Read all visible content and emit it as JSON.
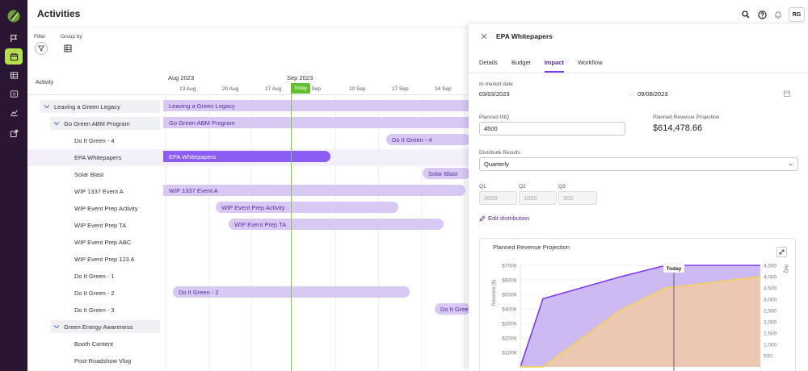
{
  "app": {
    "title": "Activities",
    "avatar": "RG"
  },
  "toolbar": {
    "filter_label": "Filter",
    "group_by_label": "Group by"
  },
  "timeline": {
    "column_header": "Activity",
    "months": [
      "Aug 2023",
      "Sep 2023"
    ],
    "weeks": [
      "13 Aug",
      "20 Aug",
      "27 Aug",
      "3 Sep",
      "10 Sep",
      "17 Sep",
      "24 Sep"
    ],
    "today_label": "Today"
  },
  "rows": [
    {
      "label": "Leaving a Green Legacy",
      "level": 0,
      "group": true,
      "bar": "Leaving a Green Legacy"
    },
    {
      "label": "Go Green ABM Program",
      "level": 1,
      "group": true,
      "bar": "Go Green ABM Program"
    },
    {
      "label": "Do It Green - 4",
      "level": 2,
      "bar": "Do It Green - 4"
    },
    {
      "label": "EPA Whitepapers",
      "level": 2,
      "selected": true,
      "bar": "EPA Whitepapers"
    },
    {
      "label": "Solar Blast",
      "level": 2,
      "bar": "Solar Blast"
    },
    {
      "label": "WIP 1337 Event A",
      "level": 2,
      "bar": "WIP 1337 Event A"
    },
    {
      "label": "WIP Event Prep Activity",
      "level": 2,
      "bar": "WIP Event Prep Activity"
    },
    {
      "label": "WIP Event Prep TA",
      "level": 2,
      "bar": "WIP Event Prep TA"
    },
    {
      "label": "WIP Event Prep ABC",
      "level": 2,
      "bar": ""
    },
    {
      "label": "WIP Event Prep 123 A",
      "level": 2,
      "bar": ""
    },
    {
      "label": "Do It Green - 1",
      "level": 2,
      "bar": ""
    },
    {
      "label": "Do It Green - 2",
      "level": 2,
      "bar": "Do It Green - 2"
    },
    {
      "label": "Do It Green - 3",
      "level": 2,
      "bar": "Do It Green"
    },
    {
      "label": "Green Energy Awareness",
      "level": 1,
      "group": true,
      "bar": ""
    },
    {
      "label": "Booth Content",
      "level": 2,
      "bar": ""
    },
    {
      "label": "Post-Roadshow Vlog",
      "level": 2,
      "bar": ""
    }
  ],
  "panel": {
    "title": "EPA Whitepapers",
    "tabs": [
      "Details",
      "Budget",
      "Impact",
      "Workflow"
    ],
    "active_tab": "Impact",
    "in_market_label": "In-market date",
    "start_date": "03/03/2023",
    "end_date": "09/08/2023",
    "date_arrow": "→",
    "planned_inq_label": "Planned INQ",
    "planned_inq_value": "4500",
    "revenue_proj_label": "Planned Revenue Projection",
    "revenue_proj_value": "$614,478.66",
    "distribute_label": "Distribute Results",
    "distribute_value": "Quarterly",
    "quarters": [
      {
        "label": "Q1",
        "value": "3000"
      },
      {
        "label": "Q2",
        "value": "1000"
      },
      {
        "label": "Q3",
        "value": "500"
      }
    ],
    "edit_label": "Edit distribution"
  },
  "chart_data": {
    "type": "area",
    "title": "Planned Revenue Projection",
    "ylabel": "Revenue ($)",
    "y2label": "INQ",
    "ylim": [
      0,
      700000
    ],
    "y2lim": [
      0,
      4500
    ],
    "y_ticks": [
      "$700K",
      "$600K",
      "$500K",
      "$400K",
      "$300K",
      "$200K",
      "$100K"
    ],
    "y2_ticks": [
      "4,500",
      "4,000",
      "3,500",
      "3,000",
      "2,500",
      "2,000",
      "1,500",
      "1,000",
      "500"
    ],
    "today_label": "Today",
    "series": [
      {
        "values": [
          0,
          470000,
          620000,
          700000,
          700000
        ],
        "color": "#7c3aed"
      },
      {
        "values": [
          0,
          0,
          2500,
          3500,
          4000
        ],
        "color": "#f5d547"
      }
    ],
    "colors": {
      "purple_fill": "#c9b3f2",
      "yellow_fill": "#f1c9a6"
    }
  }
}
